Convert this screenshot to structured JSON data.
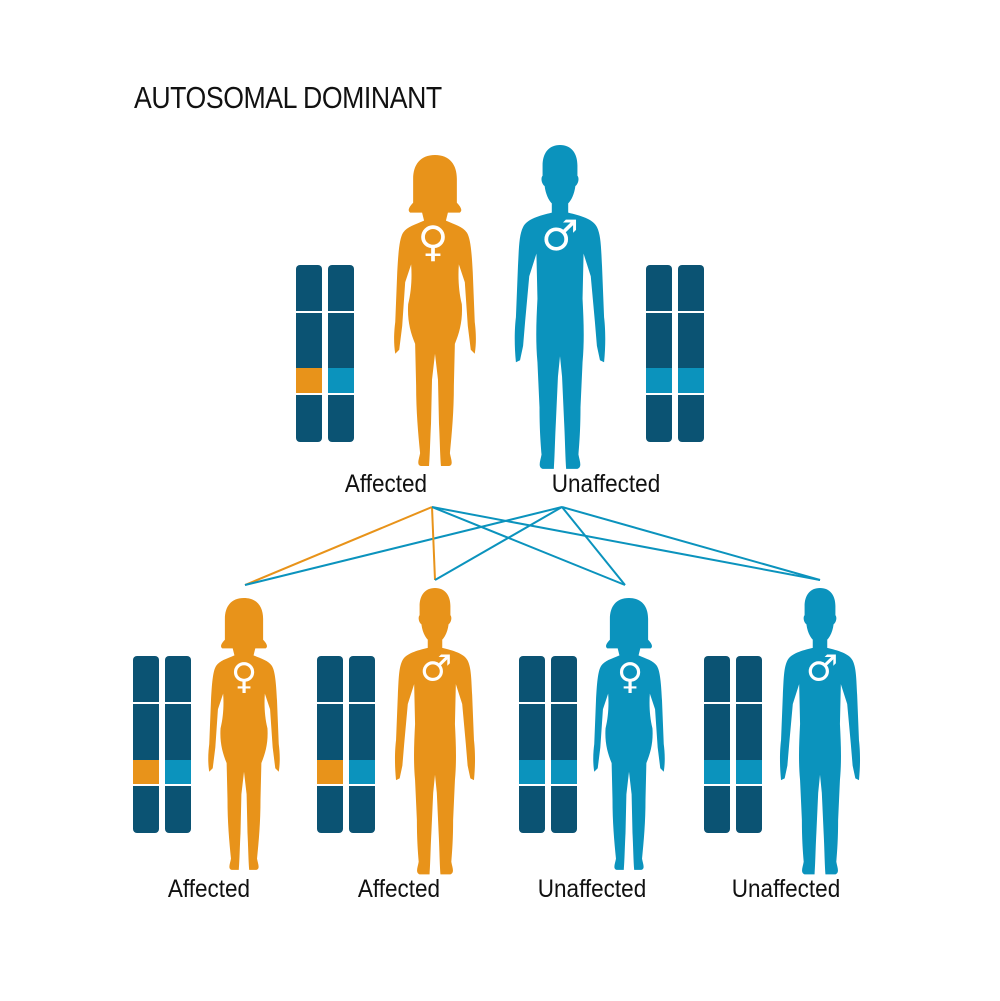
{
  "title": "AUTOSOMAL DOMINANT",
  "colors": {
    "affected": "#e8931a",
    "unaffected": "#0b93bd",
    "chromosome": "#0b5373",
    "background": "#ffffff"
  },
  "parents": [
    {
      "sex": "female",
      "symbol": "♀",
      "status": "affected",
      "label": "Affected",
      "alleles": [
        "mutant",
        "normal"
      ]
    },
    {
      "sex": "male",
      "symbol": "♂",
      "status": "unaffected",
      "label": "Unaffected",
      "alleles": [
        "normal",
        "normal"
      ]
    }
  ],
  "children": [
    {
      "sex": "female",
      "symbol": "♀",
      "status": "affected",
      "label": "Affected",
      "alleles": [
        "mutant",
        "normal"
      ]
    },
    {
      "sex": "male",
      "symbol": "♂",
      "status": "affected",
      "label": "Affected",
      "alleles": [
        "mutant",
        "normal"
      ]
    },
    {
      "sex": "female",
      "symbol": "♀",
      "status": "unaffected",
      "label": "Unaffected",
      "alleles": [
        "normal",
        "normal"
      ]
    },
    {
      "sex": "male",
      "symbol": "♂",
      "status": "unaffected",
      "label": "Unaffected",
      "alleles": [
        "normal",
        "normal"
      ]
    }
  ]
}
